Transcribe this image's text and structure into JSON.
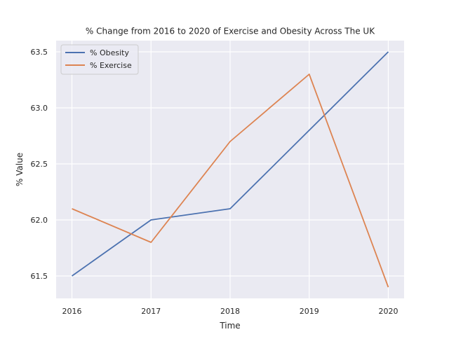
{
  "chart_data": {
    "type": "line",
    "title": "% Change from 2016 to 2020 of Exercise and Obesity Across The UK",
    "xlabel": "Time",
    "ylabel": "% Value",
    "x": [
      "2016",
      "2017",
      "2018",
      "2019",
      "2020"
    ],
    "x_numeric": [
      2016,
      2017,
      2018,
      2019,
      2020
    ],
    "xlim": [
      2015.8,
      2020.2
    ],
    "ylim": [
      61.3,
      63.6
    ],
    "yticks": [
      61.5,
      62.0,
      62.5,
      63.0,
      63.5
    ],
    "ytick_labels": [
      "61.5",
      "62.0",
      "62.5",
      "63.0",
      "63.5"
    ],
    "grid": true,
    "legend_position": "top-left",
    "background_color": "#eaeaf2",
    "grid_color": "#ffffff",
    "series": [
      {
        "name": "% Obesity",
        "color": "#4c72b0",
        "values": [
          61.5,
          62.0,
          62.1,
          62.8,
          63.5
        ]
      },
      {
        "name": "% Exercise",
        "color": "#dd8452",
        "values": [
          62.1,
          61.8,
          62.7,
          63.3,
          61.4
        ]
      }
    ]
  }
}
